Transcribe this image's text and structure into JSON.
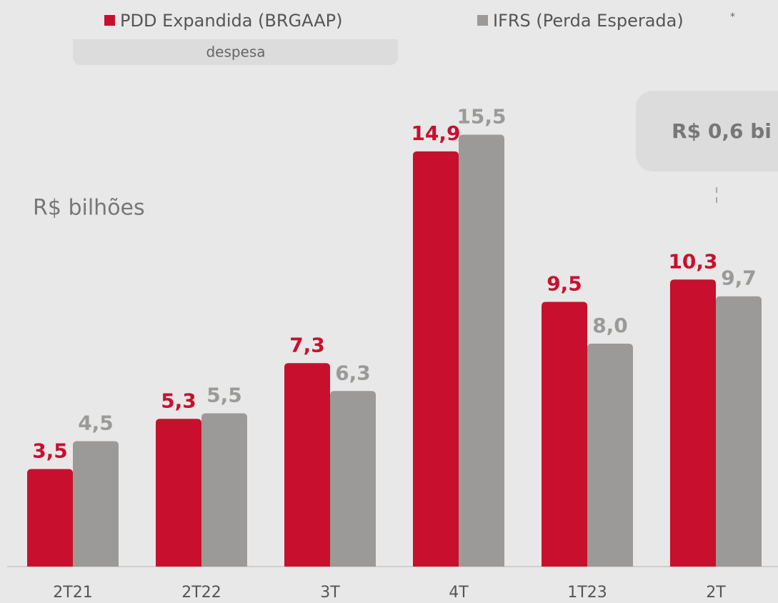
{
  "chart_data": {
    "type": "bar",
    "categories": [
      "2T21",
      "2T22",
      "3T",
      "4T",
      "1T23",
      "2T"
    ],
    "series": [
      {
        "name": "PDD Expandida (BRGAAP)",
        "color": "#c8102e",
        "values": [
          3.5,
          5.3,
          7.3,
          14.9,
          9.5,
          10.3
        ],
        "value_labels": [
          "3,5",
          "5,3",
          "7,3",
          "14,9",
          "9,5",
          "10,3"
        ]
      },
      {
        "name": "IFRS (Perda Esperada)",
        "color": "#9b9a98",
        "values": [
          4.5,
          5.5,
          6.3,
          15.5,
          8.0,
          9.7
        ],
        "value_labels": [
          "4,5",
          "5,5",
          "6,3",
          "15,5",
          "8,0",
          "9,7"
        ]
      }
    ],
    "legend_note": "*",
    "legend_caption": "despesa",
    "axis_label": "R$ bilhões",
    "annotation": "R$ 0,6 bi",
    "ylim": [
      0,
      20
    ]
  }
}
